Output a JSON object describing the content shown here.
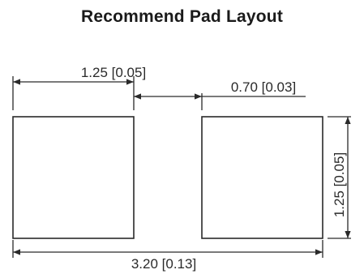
{
  "title": "Recommend Pad Layout",
  "dimensions": {
    "pad_width": "1.25 [0.05]",
    "pad_gap": "0.70 [0.03]",
    "pad_height": "1.25 [0.05]",
    "overall_length": "3.20 [0.13]"
  },
  "colors": {
    "line": "#2a2a2a",
    "pad_fill": "#ffffff"
  }
}
